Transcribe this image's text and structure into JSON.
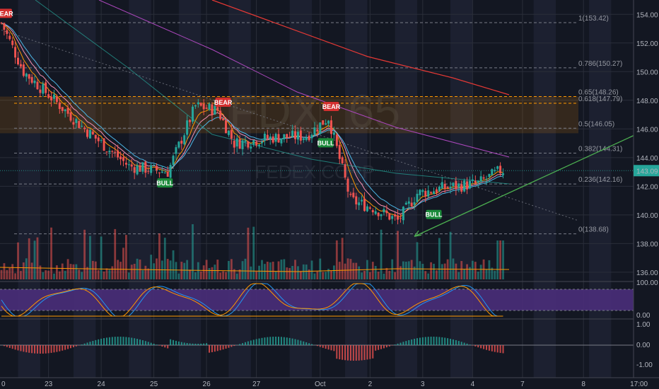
{
  "chart_data": {
    "type": "candlestick",
    "watermark": {
      "symbol": "FDX, 65",
      "name": "FEDEX CORP"
    },
    "current_price": "143.09",
    "colors": {
      "up": "#26a69a",
      "down": "#ef5350",
      "bg": "#131722",
      "grid": "#2a2e39",
      "stoch": "#4a2d7a",
      "trend": "#4caf50",
      "fib_band": "#ff9800"
    },
    "price_axis": {
      "min": 135.5,
      "max": 155,
      "ticks": [
        "154.00",
        "152.00",
        "150.00",
        "148.00",
        "146.00",
        "144.00",
        "142.00",
        "140.00",
        "138.00",
        "136.00"
      ]
    },
    "x_labels": [
      {
        "i": -4,
        "label": "0"
      },
      {
        "i": 17,
        "label": "23"
      },
      {
        "i": 36,
        "label": "24"
      },
      {
        "i": 55,
        "label": "25"
      },
      {
        "i": 74,
        "label": "26"
      },
      {
        "i": 92,
        "label": "27"
      },
      {
        "i": 115,
        "label": "Oct"
      },
      {
        "i": 133,
        "label": "2"
      },
      {
        "i": 152,
        "label": "3"
      },
      {
        "i": 170,
        "label": "4"
      },
      {
        "i": 188,
        "label": "7"
      },
      {
        "i": 210,
        "label": "8"
      },
      {
        "i": 230,
        "label": "17:00"
      }
    ],
    "fib_levels": [
      {
        "ratio": 1,
        "label": "1(153.42)",
        "price": 153.42
      },
      {
        "ratio": 0.786,
        "label": "0.786(150.27)",
        "price": 150.27
      },
      {
        "ratio": 0.65,
        "label": "0.65(148.26)",
        "price": 148.26
      },
      {
        "ratio": 0.618,
        "label": "0.618(147.79)",
        "price": 147.79
      },
      {
        "ratio": 0.5,
        "label": "0.5(146.05)",
        "price": 146.05
      },
      {
        "ratio": 0.382,
        "label": "0.382(144.31)",
        "price": 144.31
      },
      {
        "ratio": 0.236,
        "label": "0.236(142.16)",
        "price": 142.16
      },
      {
        "ratio": 0,
        "label": "0(138.68)",
        "price": 138.68
      }
    ],
    "key_points": [
      {
        "i": 0,
        "p": 153.4
      },
      {
        "i": 8,
        "p": 150.0
      },
      {
        "i": 18,
        "p": 148.2
      },
      {
        "i": 30,
        "p": 146.0
      },
      {
        "i": 46,
        "p": 143.4
      },
      {
        "i": 60,
        "p": 143.0
      },
      {
        "i": 70,
        "p": 147.6
      },
      {
        "i": 78,
        "p": 147.3
      },
      {
        "i": 84,
        "p": 145.0
      },
      {
        "i": 98,
        "p": 145.4
      },
      {
        "i": 110,
        "p": 145.5
      },
      {
        "i": 118,
        "p": 146.8
      },
      {
        "i": 126,
        "p": 141.0
      },
      {
        "i": 134,
        "p": 140.5
      },
      {
        "i": 143,
        "p": 139.6
      },
      {
        "i": 150,
        "p": 141.5
      },
      {
        "i": 160,
        "p": 141.9
      },
      {
        "i": 172,
        "p": 142.2
      },
      {
        "i": 180,
        "p": 143.1
      }
    ],
    "signals": [
      {
        "type": "BEAR",
        "i": 1,
        "price": 153.5
      },
      {
        "type": "BULL",
        "i": 59,
        "price": 142.8
      },
      {
        "type": "BEAR",
        "i": 80,
        "price": 147.3
      },
      {
        "type": "BEAR",
        "i": 119,
        "price": 147.0
      },
      {
        "type": "BULL",
        "i": 117,
        "price": 145.6
      },
      {
        "type": "BULL",
        "i": 156,
        "price": 140.6
      }
    ],
    "trendline": {
      "from": {
        "i": 149,
        "p": 138.5
      },
      "to": {
        "i": 231,
        "p": 145.8
      }
    },
    "rsi_axis": [
      "100.00",
      "0.00"
    ],
    "macd_axis": [
      "1.00",
      "0.00",
      "-1.00"
    ]
  }
}
